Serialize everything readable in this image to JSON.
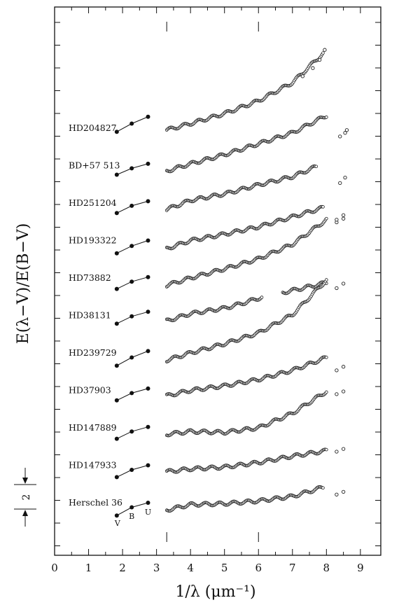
{
  "chart_data": {
    "type": "scatter",
    "xlabel": "1/λ (μm⁻¹)",
    "ylabel": "E(λ−V)/E(B−V)",
    "xlim": [
      0,
      9.6
    ],
    "x_ticks": [
      "0",
      "1",
      "2",
      "3",
      "4",
      "5",
      "6",
      "7",
      "8",
      "9"
    ],
    "x_tick_values": [
      0,
      1,
      2,
      3,
      4,
      5,
      6,
      7,
      8,
      9
    ],
    "y_ticks_labeled": false,
    "offset_scale_label": "2",
    "band_labels": [
      {
        "name": "V",
        "x": 1.83
      },
      {
        "name": "B",
        "x": 2.27
      },
      {
        "name": "U",
        "x": 2.75
      }
    ],
    "series": [
      {
        "name": "HD204827",
        "vbu": [
          -0.4,
          0.5,
          1.25
        ],
        "curve": [
          [
            3.3,
            -0.2
          ],
          [
            4,
            0.5
          ],
          [
            5,
            1.6
          ],
          [
            6,
            3.0
          ],
          [
            7,
            5.0
          ],
          [
            7.9,
            8.2
          ]
        ],
        "gaps": [],
        "fuv": [
          [
            7.3,
            5.7
          ],
          [
            7.6,
            6.6
          ],
          [
            7.8,
            7.5
          ],
          [
            7.95,
            8.6
          ]
        ]
      },
      {
        "name": "BD+57 513",
        "vbu": [
          -1.0,
          -0.3,
          0.2
        ],
        "curve": [
          [
            3.3,
            -0.6
          ],
          [
            4,
            0.2
          ],
          [
            5,
            1.2
          ],
          [
            6,
            2.4
          ],
          [
            7,
            3.6
          ],
          [
            8,
            5.5
          ]
        ],
        "gaps": [],
        "fuv": [
          [
            8.4,
            3.2
          ],
          [
            8.55,
            3.6
          ],
          [
            8.6,
            3.9
          ]
        ]
      },
      {
        "name": "HD251204",
        "vbu": [
          -1.1,
          -0.3,
          0.2
        ],
        "curve": [
          [
            3.3,
            -0.7
          ],
          [
            4,
            0.3
          ],
          [
            5,
            1.0
          ],
          [
            6,
            2.0
          ],
          [
            7,
            2.9
          ],
          [
            7.7,
            4.0
          ]
        ],
        "gaps": [],
        "fuv": [
          [
            8.4,
            2.2
          ],
          [
            8.55,
            2.8
          ]
        ]
      },
      {
        "name": "HD193322",
        "vbu": [
          -1.4,
          -0.6,
          0.0
        ],
        "curve": [
          [
            3.3,
            -0.9
          ],
          [
            4,
            0.0
          ],
          [
            5,
            0.7
          ],
          [
            6,
            1.5
          ],
          [
            7,
            2.6
          ],
          [
            7.9,
            3.6
          ]
        ],
        "gaps": [],
        "fuv": [
          [
            8.3,
            2.0
          ],
          [
            8.5,
            2.4
          ]
        ]
      },
      {
        "name": "HD73882",
        "vbu": [
          -1.2,
          -0.4,
          0.1
        ],
        "curve": [
          [
            3.3,
            -0.8
          ],
          [
            4,
            0.0
          ],
          [
            5,
            1.0
          ],
          [
            6,
            2.1
          ],
          [
            7,
            3.7
          ],
          [
            8,
            6.4
          ]
        ],
        "gaps": [],
        "fuv": [
          [
            8.3,
            6.4
          ],
          [
            8.5,
            6.9
          ]
        ]
      },
      {
        "name": "HD38131",
        "vbu": [
          -0.9,
          -0.1,
          0.4
        ],
        "curve": [
          [
            3.3,
            -0.6
          ],
          [
            4,
            0.2
          ],
          [
            4.5,
            0.5
          ],
          [
            5,
            0.8
          ],
          [
            5.5,
            1.3
          ],
          [
            6.1,
            2.0
          ],
          [
            6.7,
            2.5
          ],
          [
            7.3,
            3.0
          ],
          [
            8,
            3.6
          ]
        ],
        "gaps": [
          [
            6.1,
            6.7
          ]
        ],
        "fuv": [
          [
            8.3,
            3.0
          ],
          [
            8.5,
            3.5
          ]
        ]
      },
      {
        "name": "HD239729",
        "vbu": [
          -1.4,
          -0.5,
          0.2
        ],
        "curve": [
          [
            3.3,
            -0.8
          ],
          [
            4,
            0.0
          ],
          [
            5,
            1.0
          ],
          [
            6,
            2.2
          ],
          [
            7,
            4.2
          ],
          [
            8,
            8.0
          ]
        ],
        "gaps": [],
        "fuv": []
      },
      {
        "name": "HD37903",
        "vbu": [
          -1.1,
          -0.3,
          0.2
        ],
        "curve": [
          [
            3.3,
            -0.6
          ],
          [
            4,
            0.0
          ],
          [
            5,
            0.5
          ],
          [
            6,
            1.2
          ],
          [
            7,
            2.2
          ],
          [
            8,
            3.6
          ]
        ],
        "gaps": [],
        "fuv": [
          [
            8.3,
            2.2
          ],
          [
            8.5,
            2.6
          ]
        ]
      },
      {
        "name": "HD147889",
        "vbu": [
          -1.2,
          -0.4,
          0.1
        ],
        "curve": [
          [
            3.3,
            -0.7
          ],
          [
            4,
            -0.4
          ],
          [
            5,
            -0.5
          ],
          [
            6,
            0.0
          ],
          [
            7,
            1.6
          ],
          [
            8,
            4.0
          ]
        ],
        "gaps": [],
        "fuv": [
          [
            8.3,
            3.7
          ],
          [
            8.5,
            4.0
          ]
        ]
      },
      {
        "name": "HD147933",
        "vbu": [
          -1.3,
          -0.5,
          0.0
        ],
        "curve": [
          [
            3.3,
            -0.7
          ],
          [
            4,
            -0.4
          ],
          [
            5,
            -0.2
          ],
          [
            6,
            0.3
          ],
          [
            7,
            1.0
          ],
          [
            8,
            1.6
          ]
        ],
        "gaps": [],
        "fuv": [
          [
            8.3,
            1.5
          ],
          [
            8.5,
            1.8
          ]
        ]
      },
      {
        "name": "Herschel 36",
        "vbu": [
          -1.4,
          -0.5,
          0.0
        ],
        "curve": [
          [
            3.3,
            -0.8
          ],
          [
            4,
            -0.2
          ],
          [
            5,
            -0.1
          ],
          [
            6,
            0.2
          ],
          [
            7,
            0.7
          ],
          [
            7.9,
            1.7
          ]
        ],
        "gaps": [],
        "fuv": [
          [
            8.3,
            0.9
          ],
          [
            8.5,
            1.2
          ]
        ]
      }
    ]
  }
}
